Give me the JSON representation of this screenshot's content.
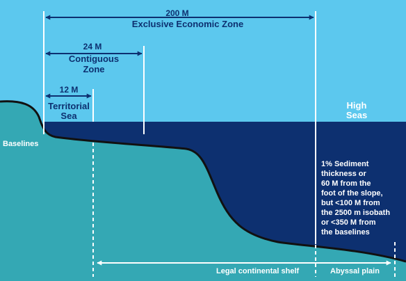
{
  "colors": {
    "sky": "#5cc8ee",
    "sea": "#0d3070",
    "seabed": "#34a8b4",
    "navy_text": "#0d3070",
    "white": "#ffffff"
  },
  "labels": {
    "eez_distance": "200 M",
    "eez_name": "Exclusive Economic Zone",
    "contiguous_distance": "24 M",
    "contiguous_name": [
      "Contiguous",
      "Zone"
    ],
    "territorial_distance": "12 M",
    "territorial_name": [
      "Territorial",
      "Sea"
    ],
    "high_seas": [
      "High",
      "Seas"
    ],
    "baselines": "Baselines",
    "sediment_note": [
      "1% Sediment",
      "thickness or",
      "60 M from the",
      "foot of the slope,",
      "but <100 M from",
      "the 2500 m isobath",
      "or <350 M from",
      "the baselines"
    ],
    "legal_shelf": "Legal continental shelf",
    "abyssal_plain": "Abyssal plain"
  }
}
